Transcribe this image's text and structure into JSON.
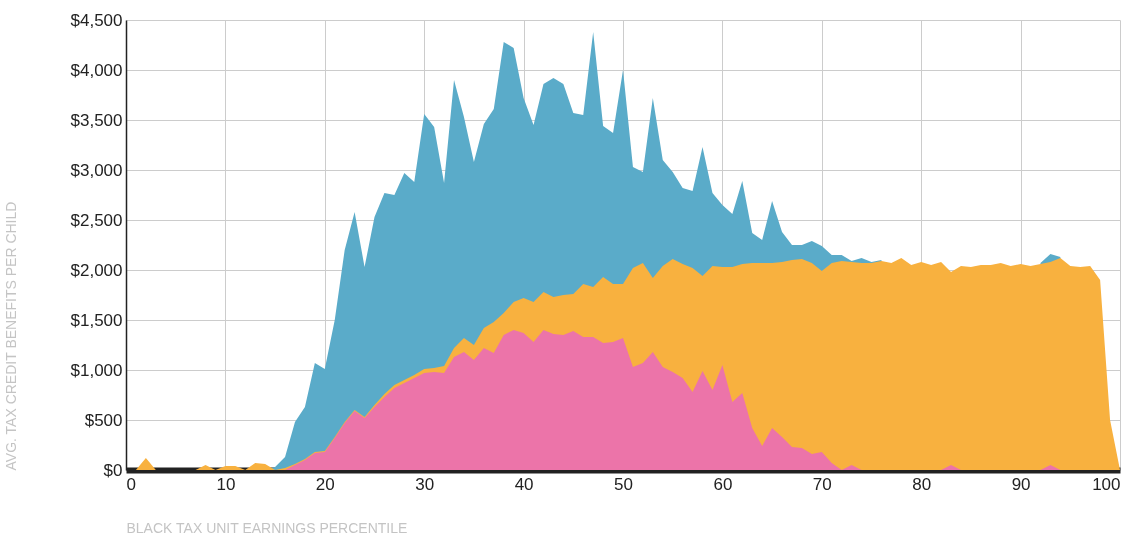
{
  "chart_data": {
    "type": "area",
    "xlabel": "BLACK TAX UNIT EARNINGS PERCENTILE",
    "ylabel": "AVG. TAX CREDIT BENEFITS PER CHILD",
    "x": [
      0,
      1,
      2,
      3,
      4,
      5,
      6,
      7,
      8,
      9,
      10,
      11,
      12,
      13,
      14,
      15,
      16,
      17,
      18,
      19,
      20,
      21,
      22,
      23,
      24,
      25,
      26,
      27,
      28,
      29,
      30,
      31,
      32,
      33,
      34,
      35,
      36,
      37,
      38,
      39,
      40,
      41,
      42,
      43,
      44,
      45,
      46,
      47,
      48,
      49,
      50,
      51,
      52,
      53,
      54,
      55,
      56,
      57,
      58,
      59,
      60,
      61,
      62,
      63,
      64,
      65,
      66,
      67,
      68,
      69,
      70,
      71,
      72,
      73,
      74,
      75,
      76,
      77,
      78,
      79,
      80,
      81,
      82,
      83,
      84,
      85,
      86,
      87,
      88,
      89,
      90,
      91,
      92,
      93,
      94,
      95,
      96,
      97,
      98,
      99,
      100
    ],
    "series": [
      {
        "color": "#5aabc9",
        "values": [
          0,
          0,
          0,
          0,
          0,
          0,
          0,
          0,
          0,
          0,
          0,
          0,
          0,
          0,
          0,
          30,
          130,
          480,
          630,
          1070,
          1010,
          1500,
          2200,
          2580,
          2030,
          2530,
          2770,
          2750,
          2970,
          2880,
          3560,
          3430,
          2870,
          3900,
          3530,
          3080,
          3460,
          3610,
          4280,
          4220,
          3720,
          3450,
          3860,
          3920,
          3860,
          3570,
          3550,
          4380,
          3440,
          3370,
          4000,
          3030,
          2980,
          3720,
          3100,
          2980,
          2820,
          2790,
          3230,
          2770,
          2650,
          2560,
          2890,
          2370,
          2300,
          2690,
          2380,
          2250,
          2250,
          2290,
          2240,
          2150,
          2150,
          2090,
          2120,
          2080,
          2100,
          null,
          null,
          null,
          null,
          null,
          null,
          null,
          null,
          null,
          null,
          null,
          null,
          null,
          null,
          null,
          2070,
          2160,
          2130,
          null,
          null,
          null,
          null,
          null,
          null
        ]
      },
      {
        "color": "#f8b13f",
        "values": [
          0,
          0,
          120,
          0,
          0,
          0,
          0,
          0,
          50,
          0,
          40,
          40,
          0,
          70,
          60,
          0,
          20,
          60,
          110,
          180,
          190,
          330,
          480,
          600,
          530,
          650,
          760,
          850,
          900,
          950,
          1010,
          1020,
          1040,
          1220,
          1320,
          1250,
          1420,
          1480,
          1570,
          1680,
          1720,
          1680,
          1780,
          1730,
          1750,
          1760,
          1860,
          1830,
          1930,
          1860,
          1860,
          2020,
          2070,
          1920,
          2040,
          2110,
          2060,
          2020,
          1940,
          2040,
          2030,
          2030,
          2060,
          2070,
          2070,
          2070,
          2080,
          2100,
          2110,
          2070,
          1990,
          2070,
          2090,
          2080,
          2070,
          2070,
          2090,
          2070,
          2120,
          2050,
          2080,
          2050,
          2080,
          1980,
          2040,
          2030,
          2050,
          2050,
          2070,
          2040,
          2060,
          2040,
          2060,
          2080,
          2120,
          2040,
          2030,
          2040,
          1900,
          500,
          0
        ]
      },
      {
        "color": "#ec74a9",
        "values": [
          0,
          0,
          0,
          0,
          0,
          0,
          0,
          0,
          0,
          0,
          0,
          0,
          0,
          0,
          0,
          0,
          0,
          50,
          100,
          170,
          180,
          320,
          470,
          590,
          520,
          630,
          730,
          820,
          870,
          920,
          970,
          980,
          970,
          1130,
          1180,
          1100,
          1220,
          1170,
          1350,
          1400,
          1370,
          1280,
          1400,
          1360,
          1350,
          1390,
          1330,
          1330,
          1270,
          1280,
          1320,
          1030,
          1070,
          1180,
          1030,
          980,
          920,
          780,
          990,
          800,
          1050,
          680,
          770,
          420,
          240,
          420,
          330,
          230,
          220,
          160,
          180,
          70,
          0,
          50,
          0,
          0,
          0,
          0,
          0,
          0,
          0,
          0,
          0,
          50,
          0,
          0,
          0,
          0,
          0,
          0,
          0,
          0,
          0,
          50,
          0,
          0,
          0,
          0,
          0,
          0,
          0
        ]
      }
    ],
    "xlim": [
      0,
      100
    ],
    "xticks": [
      0,
      10,
      20,
      30,
      40,
      50,
      60,
      70,
      80,
      90,
      100
    ],
    "ylim": [
      0,
      4500
    ],
    "yticks": [
      {
        "value": 0,
        "label": "$0"
      },
      {
        "value": 500,
        "label": "$500"
      },
      {
        "value": 1000,
        "label": "$1,000"
      },
      {
        "value": 1500,
        "label": "$1,500"
      },
      {
        "value": 2000,
        "label": "$2,000"
      },
      {
        "value": 2500,
        "label": "$2,500"
      },
      {
        "value": 3000,
        "label": "$3,000"
      },
      {
        "value": 3500,
        "label": "$3,500"
      },
      {
        "value": 4000,
        "label": "$4,000"
      },
      {
        "value": 4500,
        "label": "$4,500"
      }
    ],
    "grid": true
  }
}
